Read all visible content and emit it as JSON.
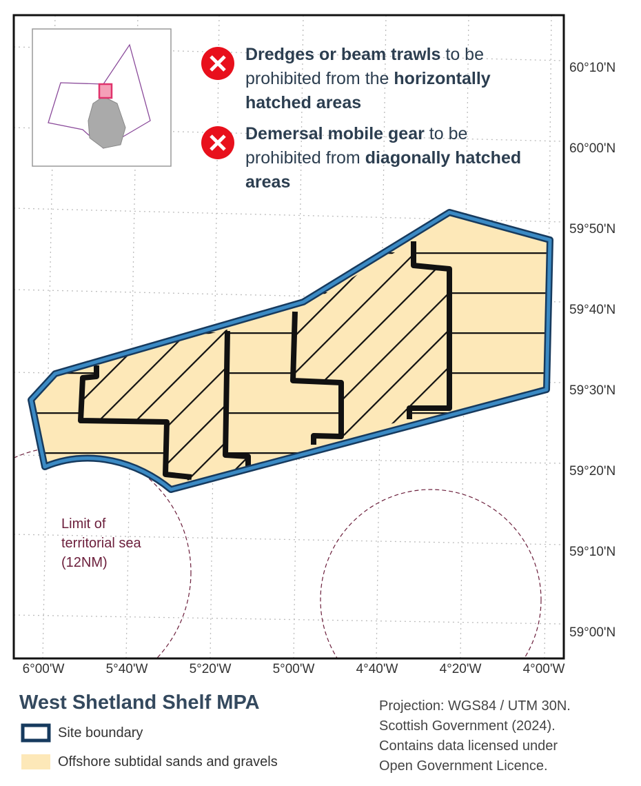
{
  "notes": [
    {
      "bold": "Dredges or beam trawls",
      "text": "to be prohibited from the",
      "bold2": "horizontally hatched areas"
    },
    {
      "bold": "Demersal mobile gear",
      "text": "to be prohibited from",
      "bold2": "diagonally hatched areas"
    }
  ],
  "lat_labels": [
    "60°10'N",
    "60°00'N",
    "59°50'N",
    "59°40'N",
    "59°30'N",
    "59°20'N",
    "59°10'N",
    "59°00'N"
  ],
  "lon_labels": [
    "6°00'W",
    "5°40'W",
    "5°20'W",
    "5°00'W",
    "4°40'W",
    "4°20'W",
    "4°00'W"
  ],
  "annotation": [
    "Limit of",
    "territorial sea",
    "(12NM)"
  ],
  "title": "West Shetland Shelf MPA",
  "legend": [
    "Site boundary",
    "Offshore subtidal sands and gravels"
  ],
  "credits": [
    "Projection: WGS84 / UTM 30N.",
    "Scottish Government (2024).",
    "Contains data licensed under",
    "Open Government Licence."
  ]
}
